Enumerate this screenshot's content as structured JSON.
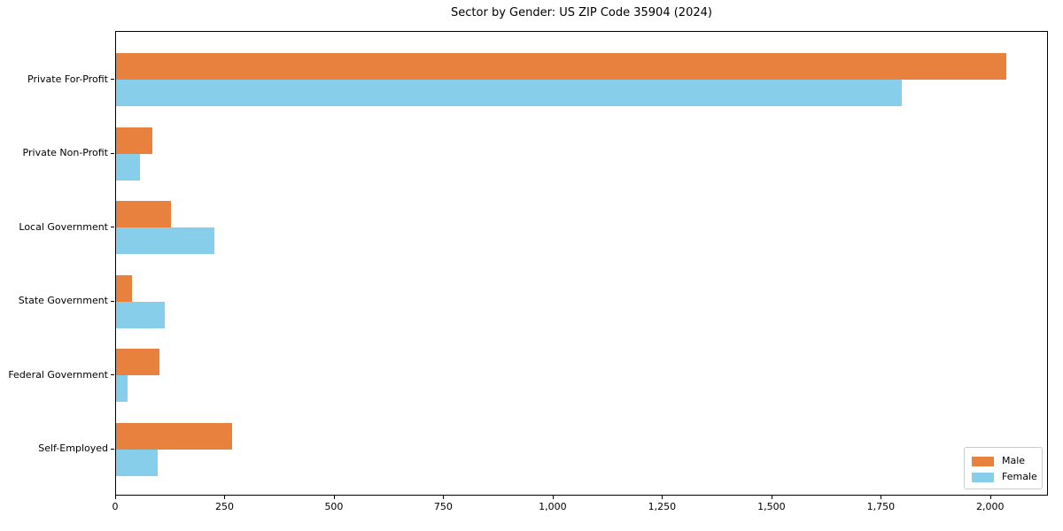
{
  "chart_data": {
    "type": "bar",
    "orientation": "horizontal",
    "title": "Sector by Gender: US ZIP Code 35904 (2024)",
    "categories": [
      "Private For-Profit",
      "Private Non-Profit",
      "Local Government",
      "State Government",
      "Federal Government",
      "Self-Employed"
    ],
    "series": [
      {
        "name": "Male",
        "color": "#E8803E",
        "values": [
          2034,
          84,
          125,
          37,
          99,
          265
        ]
      },
      {
        "name": "Female",
        "color": "#87CEEB",
        "values": [
          1795,
          54,
          225,
          111,
          27,
          96
        ]
      }
    ],
    "xlabel": "",
    "ylabel": "",
    "xlim": [
      0,
      2132
    ],
    "xticks": [
      0,
      250,
      500,
      750,
      1000,
      1250,
      1500,
      1750,
      2000
    ],
    "xtick_labels": [
      "0",
      "250",
      "500",
      "750",
      "1,000",
      "1,250",
      "1,500",
      "1,750",
      "2,000"
    ],
    "legend": {
      "position": "lower right"
    },
    "grid": false,
    "colors": {
      "male": "#E8803E",
      "female": "#87CEEB",
      "axis": "#000000",
      "legend_border": "#cccccc"
    }
  }
}
